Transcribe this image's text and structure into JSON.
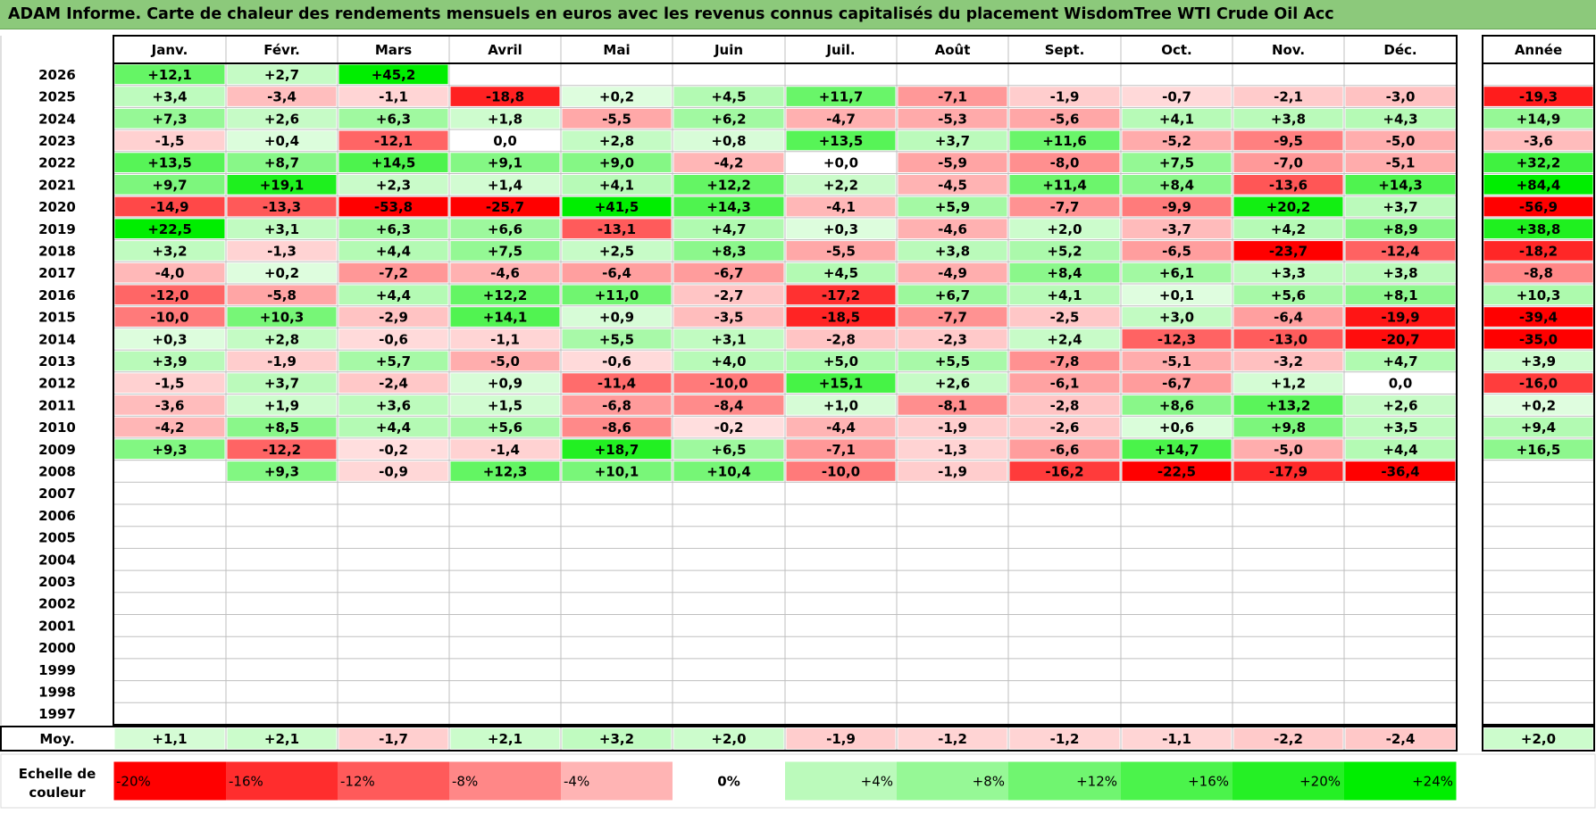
{
  "title": "ADAM Informe. Carte de chaleur des rendements mensuels en euros avec les revenus connus capitalisés du placement WisdomTree WTI Crude Oil Acc",
  "chart_data": {
    "type": "heatmap",
    "columns": [
      "Janv.",
      "Févr.",
      "Mars",
      "Avril",
      "Mai",
      "Juin",
      "Juil.",
      "Août",
      "Sept.",
      "Oct.",
      "Nov.",
      "Déc."
    ],
    "year_column": "Année",
    "rows": [
      {
        "year": "2026",
        "months": [
          "+12,1",
          "+2,7",
          "+45,2",
          "",
          "",
          "",
          "",
          "",
          "",
          "",
          "",
          ""
        ],
        "annual": ""
      },
      {
        "year": "2025",
        "months": [
          "+3,4",
          "-3,4",
          "-1,1",
          "-18,8",
          "+0,2",
          "+4,5",
          "+11,7",
          "-7,1",
          "-1,9",
          "-0,7",
          "-2,1",
          "-3,0"
        ],
        "annual": "-19,3"
      },
      {
        "year": "2024",
        "months": [
          "+7,3",
          "+2,6",
          "+6,3",
          "+1,8",
          "-5,5",
          "+6,2",
          "-4,7",
          "-5,3",
          "-5,6",
          "+4,1",
          "+3,8",
          "+4,3"
        ],
        "annual": "+14,9"
      },
      {
        "year": "2023",
        "months": [
          "-1,5",
          "+0,4",
          "-12,1",
          "0,0",
          "+2,8",
          "+0,8",
          "+13,5",
          "+3,7",
          "+11,6",
          "-5,2",
          "-9,5",
          "-5,0"
        ],
        "annual": "-3,6"
      },
      {
        "year": "2022",
        "months": [
          "+13,5",
          "+8,7",
          "+14,5",
          "+9,1",
          "+9,0",
          "-4,2",
          "+0,0",
          "-5,9",
          "-8,0",
          "+7,5",
          "-7,0",
          "-5,1"
        ],
        "annual": "+32,2"
      },
      {
        "year": "2021",
        "months": [
          "+9,7",
          "+19,1",
          "+2,3",
          "+1,4",
          "+4,1",
          "+12,2",
          "+2,2",
          "-4,5",
          "+11,4",
          "+8,4",
          "-13,6",
          "+14,3"
        ],
        "annual": "+84,4"
      },
      {
        "year": "2020",
        "months": [
          "-14,9",
          "-13,3",
          "-53,8",
          "-25,7",
          "+41,5",
          "+14,3",
          "-4,1",
          "+5,9",
          "-7,7",
          "-9,9",
          "+20,2",
          "+3,7"
        ],
        "annual": "-56,9"
      },
      {
        "year": "2019",
        "months": [
          "+22,5",
          "+3,1",
          "+6,3",
          "+6,6",
          "-13,1",
          "+4,7",
          "+0,3",
          "-4,6",
          "+2,0",
          "-3,7",
          "+4,2",
          "+8,9"
        ],
        "annual": "+38,8"
      },
      {
        "year": "2018",
        "months": [
          "+3,2",
          "-1,3",
          "+4,4",
          "+7,5",
          "+2,5",
          "+8,3",
          "-5,5",
          "+3,8",
          "+5,2",
          "-6,5",
          "-23,7",
          "-12,4"
        ],
        "annual": "-18,2"
      },
      {
        "year": "2017",
        "months": [
          "-4,0",
          "+0,2",
          "-7,2",
          "-4,6",
          "-6,4",
          "-6,7",
          "+4,5",
          "-4,9",
          "+8,4",
          "+6,1",
          "+3,3",
          "+3,8"
        ],
        "annual": "-8,8"
      },
      {
        "year": "2016",
        "months": [
          "-12,0",
          "-5,8",
          "+4,4",
          "+12,2",
          "+11,0",
          "-2,7",
          "-17,2",
          "+6,7",
          "+4,1",
          "+0,1",
          "+5,6",
          "+8,1"
        ],
        "annual": "+10,3"
      },
      {
        "year": "2015",
        "months": [
          "-10,0",
          "+10,3",
          "-2,9",
          "+14,1",
          "+0,9",
          "-3,5",
          "-18,5",
          "-7,7",
          "-2,5",
          "+3,0",
          "-6,4",
          "-19,9"
        ],
        "annual": "-39,4"
      },
      {
        "year": "2014",
        "months": [
          "+0,3",
          "+2,8",
          "-0,6",
          "-1,1",
          "+5,5",
          "+3,1",
          "-2,8",
          "-2,3",
          "+2,4",
          "-12,3",
          "-13,0",
          "-20,7"
        ],
        "annual": "-35,0"
      },
      {
        "year": "2013",
        "months": [
          "+3,9",
          "-1,9",
          "+5,7",
          "-5,0",
          "-0,6",
          "+4,0",
          "+5,0",
          "+5,5",
          "-7,8",
          "-5,1",
          "-3,2",
          "+4,7"
        ],
        "annual": "+3,9"
      },
      {
        "year": "2012",
        "months": [
          "-1,5",
          "+3,7",
          "-2,4",
          "+0,9",
          "-11,4",
          "-10,0",
          "+15,1",
          "+2,6",
          "-6,1",
          "-6,7",
          "+1,2",
          "0,0"
        ],
        "annual": "-16,0"
      },
      {
        "year": "2011",
        "months": [
          "-3,6",
          "+1,9",
          "+3,6",
          "+1,5",
          "-6,8",
          "-8,4",
          "+1,0",
          "-8,1",
          "-2,8",
          "+8,6",
          "+13,2",
          "+2,6"
        ],
        "annual": "+0,2"
      },
      {
        "year": "2010",
        "months": [
          "-4,2",
          "+8,5",
          "+4,4",
          "+5,6",
          "-8,6",
          "-0,2",
          "-4,4",
          "-1,9",
          "-2,6",
          "+0,6",
          "+9,8",
          "+3,5"
        ],
        "annual": "+9,4"
      },
      {
        "year": "2009",
        "months": [
          "+9,3",
          "-12,2",
          "-0,2",
          "-1,4",
          "+18,7",
          "+6,5",
          "-7,1",
          "-1,3",
          "-6,6",
          "+14,7",
          "-5,0",
          "+4,4"
        ],
        "annual": "+16,5"
      },
      {
        "year": "2008",
        "months": [
          "",
          "+9,3",
          "-0,9",
          "+12,3",
          "+10,1",
          "+10,4",
          "-10,0",
          "-1,9",
          "-16,2",
          "-22,5",
          "-17,9",
          "-36,4"
        ],
        "annual": ""
      },
      {
        "year": "2007",
        "months": [
          "",
          "",
          "",
          "",
          "",
          "",
          "",
          "",
          "",
          "",
          "",
          ""
        ],
        "annual": ""
      },
      {
        "year": "2006",
        "months": [
          "",
          "",
          "",
          "",
          "",
          "",
          "",
          "",
          "",
          "",
          "",
          ""
        ],
        "annual": ""
      },
      {
        "year": "2005",
        "months": [
          "",
          "",
          "",
          "",
          "",
          "",
          "",
          "",
          "",
          "",
          "",
          ""
        ],
        "annual": ""
      },
      {
        "year": "2004",
        "months": [
          "",
          "",
          "",
          "",
          "",
          "",
          "",
          "",
          "",
          "",
          "",
          ""
        ],
        "annual": ""
      },
      {
        "year": "2003",
        "months": [
          "",
          "",
          "",
          "",
          "",
          "",
          "",
          "",
          "",
          "",
          "",
          ""
        ],
        "annual": ""
      },
      {
        "year": "2002",
        "months": [
          "",
          "",
          "",
          "",
          "",
          "",
          "",
          "",
          "",
          "",
          "",
          ""
        ],
        "annual": ""
      },
      {
        "year": "2001",
        "months": [
          "",
          "",
          "",
          "",
          "",
          "",
          "",
          "",
          "",
          "",
          "",
          ""
        ],
        "annual": ""
      },
      {
        "year": "2000",
        "months": [
          "",
          "",
          "",
          "",
          "",
          "",
          "",
          "",
          "",
          "",
          "",
          ""
        ],
        "annual": ""
      },
      {
        "year": "1999",
        "months": [
          "",
          "",
          "",
          "",
          "",
          "",
          "",
          "",
          "",
          "",
          "",
          ""
        ],
        "annual": ""
      },
      {
        "year": "1998",
        "months": [
          "",
          "",
          "",
          "",
          "",
          "",
          "",
          "",
          "",
          "",
          "",
          ""
        ],
        "annual": ""
      },
      {
        "year": "1997",
        "months": [
          "",
          "",
          "",
          "",
          "",
          "",
          "",
          "",
          "",
          "",
          "",
          ""
        ],
        "annual": ""
      }
    ],
    "average": {
      "label": "Moy.",
      "months": [
        "+1,1",
        "+2,1",
        "-1,7",
        "+2,1",
        "+3,2",
        "+2,0",
        "-1,9",
        "-1,2",
        "-1,2",
        "-1,1",
        "-2,2",
        "-2,4"
      ],
      "annual": "+2,0"
    },
    "color_scale": {
      "label_line1": "Echelle de",
      "label_line2": "couleur",
      "stops": [
        "-20%",
        "-16%",
        "-12%",
        "-8%",
        "-4%",
        "0%",
        "+4%",
        "+8%",
        "+12%",
        "+16%",
        "+20%",
        "+24%"
      ],
      "min": -20,
      "max": 24,
      "negative_color": "#ff0000",
      "positive_color": "#00ee00",
      "neutral_color": "#ffffff"
    }
  }
}
